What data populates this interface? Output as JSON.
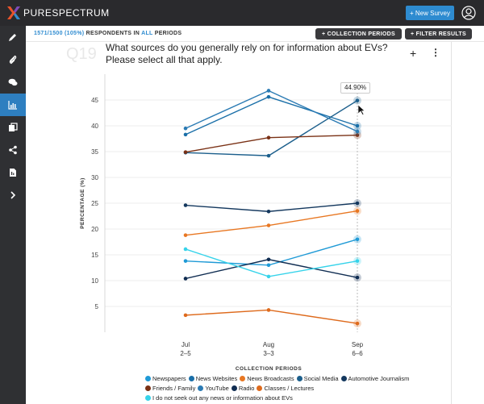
{
  "app": {
    "brand": "PURESPECTRUM",
    "new_survey_label": "+ New Survey"
  },
  "subbar": {
    "respondents_count": "1571/1500 (105%)",
    "respondents_text": "RESPONDENTS IN",
    "respondents_all": "ALL",
    "respondents_periods": "PERIODS",
    "collection_periods_btn": "+ COLLECTION PERIODS",
    "filter_results_btn": "+ FILTER RESULTS"
  },
  "question": {
    "number": "Q19",
    "text": "What sources do you generally rely on for information about EVs? Please select all that apply."
  },
  "sidebar": {
    "items": [
      "pencil-icon",
      "paperclip-icon",
      "chat-icon",
      "chart-icon",
      "copy-icon",
      "share-icon",
      "document-icon",
      "chevron-right-icon"
    ],
    "active_index": 3
  },
  "tooltip": "44.90%",
  "colors": {
    "topbar": "#2a2a2d",
    "accent": "#2e8bd0"
  },
  "chart_data": {
    "type": "line",
    "ylabel": "PERCENTAGE (%)",
    "xlabel": "COLLECTION PERIODS",
    "x": [
      [
        "Jul",
        "2–5"
      ],
      [
        "Aug",
        "3–3"
      ],
      [
        "Sep",
        "6–6"
      ]
    ],
    "ylim": [
      0,
      50
    ],
    "yticks": [
      5,
      10,
      15,
      20,
      25,
      30,
      35,
      40,
      45
    ],
    "grid": true,
    "legend_position": "bottom",
    "series": [
      {
        "name": "Newspapers",
        "color": "#1f9ad6",
        "values": [
          13.8,
          13.0,
          18.0
        ]
      },
      {
        "name": "News Websites",
        "color": "#1a6fa8",
        "values": [
          38.3,
          45.6,
          40.0
        ]
      },
      {
        "name": "News Broadcasts",
        "color": "#e87722",
        "values": [
          18.8,
          20.7,
          23.5
        ]
      },
      {
        "name": "Social Media",
        "color": "#1c5f8c",
        "values": [
          34.8,
          34.2,
          44.9
        ]
      },
      {
        "name": "Automotive Journalism",
        "color": "#14385e",
        "values": [
          24.6,
          23.4,
          25.0
        ]
      },
      {
        "name": "Friends / Family",
        "color": "#7a3115",
        "values": [
          34.9,
          37.7,
          38.2
        ]
      },
      {
        "name": "YouTube",
        "color": "#2b7bb4",
        "values": [
          39.5,
          46.8,
          38.9
        ]
      },
      {
        "name": "Radio",
        "color": "#102d52",
        "values": [
          10.4,
          14.1,
          10.6
        ]
      },
      {
        "name": "Classes / Lectures",
        "color": "#de6a1c",
        "values": [
          3.3,
          4.3,
          1.7
        ]
      },
      {
        "name": "I do not seek out any news or information about EVs",
        "color": "#36d3ea",
        "values": [
          16.1,
          10.8,
          13.8
        ]
      }
    ]
  }
}
